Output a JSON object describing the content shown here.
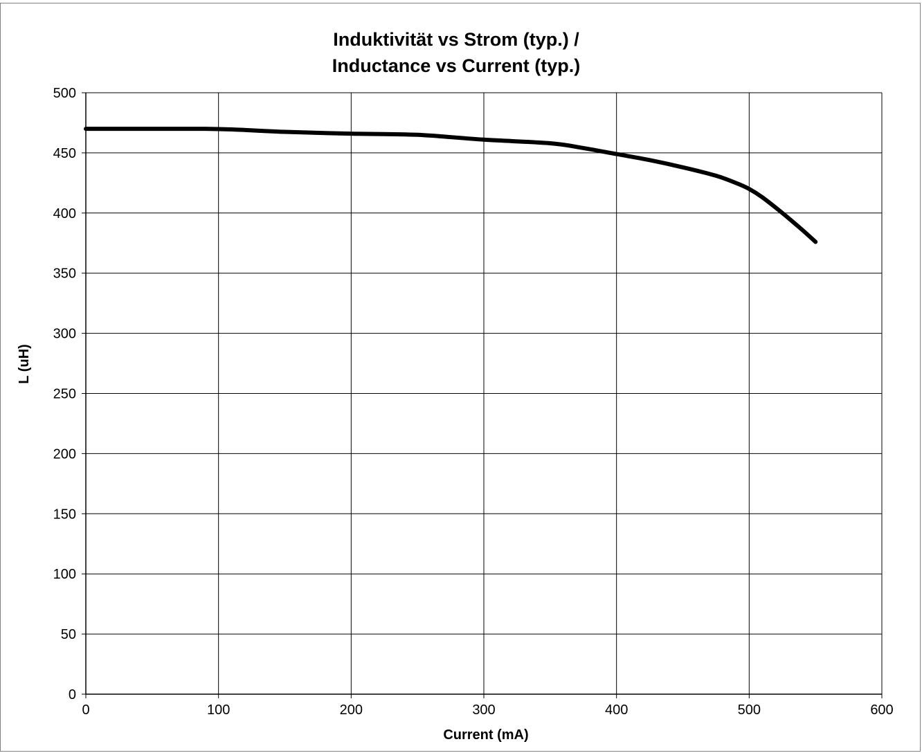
{
  "chart_data": {
    "type": "line",
    "title_lines": [
      "Induktivität vs Strom (typ.) /",
      "Inductance vs Current (typ.)"
    ],
    "xlabel": "Current (mA)",
    "ylabel": "L (uH)",
    "xlim": [
      0,
      600
    ],
    "ylim": [
      0,
      500
    ],
    "x_ticks": [
      0,
      100,
      200,
      300,
      400,
      500,
      600
    ],
    "y_ticks": [
      0,
      50,
      100,
      150,
      200,
      250,
      300,
      350,
      400,
      450,
      500
    ],
    "grid": true,
    "legend": "none",
    "line_color": "#000000",
    "series": [
      {
        "x": [
          0,
          50,
          90,
          110,
          150,
          200,
          250,
          300,
          350,
          375,
          400,
          425,
          450,
          475,
          490,
          500,
          510,
          525,
          540,
          550
        ],
        "y": [
          470,
          470,
          470,
          469.5,
          467.5,
          466,
          465,
          461,
          458,
          454,
          449,
          444,
          438,
          431,
          425,
          420,
          413,
          400,
          386,
          376
        ]
      }
    ]
  }
}
